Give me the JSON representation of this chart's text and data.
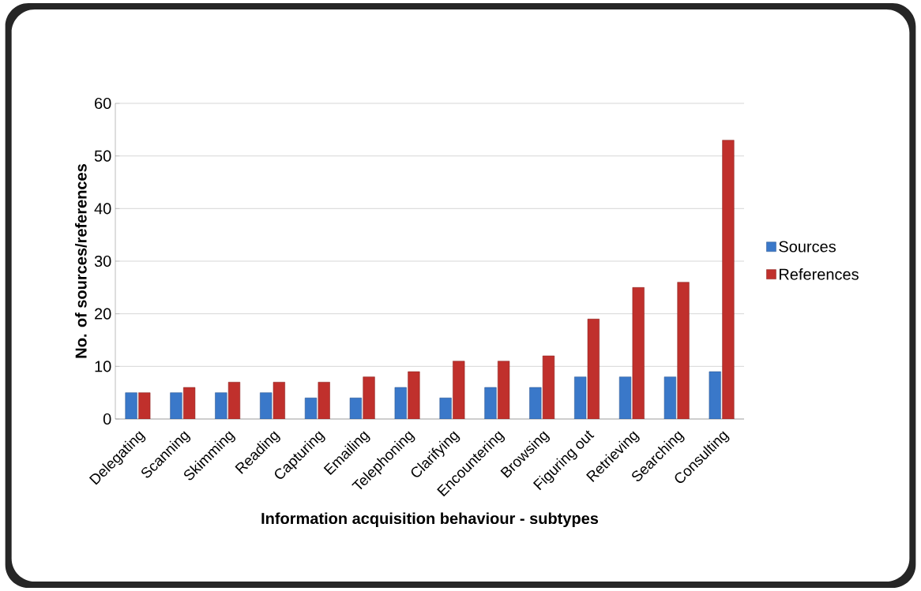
{
  "chart_data": {
    "type": "bar",
    "xlabel": "Information acquisition behaviour - subtypes",
    "ylabel": "No. of sources/references",
    "categories": [
      "Delegating",
      "Scanning",
      "Skimming",
      "Reading",
      "Capturing",
      "Emailing",
      "Telephoning",
      "Clarifying",
      "Encountering",
      "Browsing",
      "Figuring out",
      "Retrieving",
      "Searching",
      "Consulting"
    ],
    "series": [
      {
        "name": "Sources",
        "color": "#3a78c9",
        "values": [
          5,
          5,
          5,
          5,
          4,
          4,
          6,
          4,
          6,
          6,
          8,
          8,
          8,
          9
        ]
      },
      {
        "name": "References",
        "color": "#c0302c",
        "values": [
          5,
          6,
          7,
          7,
          7,
          8,
          9,
          11,
          11,
          12,
          19,
          25,
          26,
          53
        ]
      }
    ],
    "ylim": [
      0,
      60
    ],
    "yticks": [
      0,
      10,
      20,
      30,
      40,
      50,
      60
    ],
    "grid": "y",
    "legend": "right"
  }
}
